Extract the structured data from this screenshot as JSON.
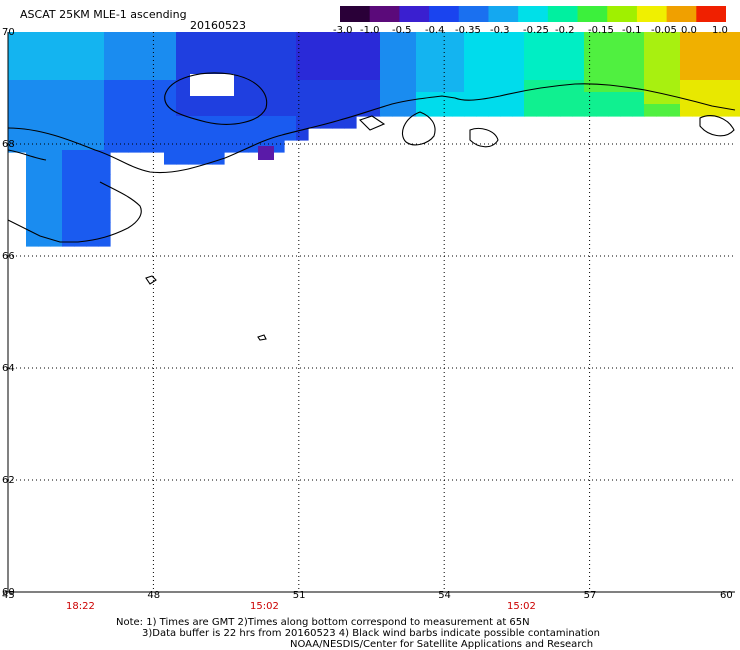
{
  "header": {
    "title": "ASCAT 25KM MLE-1 ascending",
    "date": "20160523"
  },
  "colorbar": {
    "labels": [
      "-3.0",
      "-1.0",
      "-0.5",
      "-0.4",
      "-0.35",
      "-0.3",
      "-0.25",
      "-0.2",
      "-0.15",
      "-0.1",
      "-0.05",
      "0.0",
      "1.0"
    ],
    "colors": [
      "#2a0038",
      "#5b0a7a",
      "#3a1fd0",
      "#1a44ef",
      "#1a70f0",
      "#14a8f0",
      "#00e0e8",
      "#00f0a0",
      "#3cf03c",
      "#a0f000",
      "#f0f000",
      "#f0a000",
      "#f02000"
    ]
  },
  "axes": {
    "lat_labels": [
      "70",
      "68",
      "66",
      "64",
      "62",
      "60"
    ],
    "lon_labels": [
      "45",
      "48",
      "51",
      "54",
      "57",
      "60"
    ],
    "lat_range": [
      60,
      70
    ],
    "lon_range": [
      45,
      60
    ]
  },
  "times": [
    "18:22",
    "15:02",
    "15:02"
  ],
  "notes": {
    "line1": "Note: 1) Times are GMT 2)Times along bottom correspond to measurement at 65N",
    "line2": "3)Data buffer is 22 hrs from 20160523 4) Black wind barbs indicate possible contamination",
    "line3": "NOAA/NESDIS/Center for Satellite Applications and Research"
  }
}
